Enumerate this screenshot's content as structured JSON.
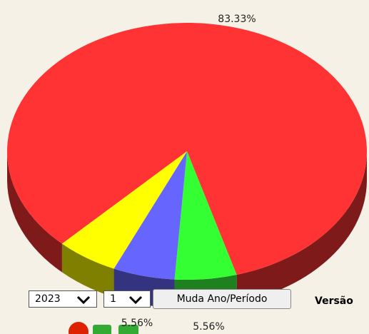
{
  "chart_data": {
    "type": "pie",
    "values": [
      83.33,
      5.56,
      5.56,
      5.56
    ],
    "value_labels": [
      "83.33%",
      "5.56%",
      "5.56%",
      null
    ],
    "colors": [
      "#ff3333",
      "#33ff33",
      "#6666ff",
      "#ffff00"
    ],
    "side_colors": [
      "#7f1a1a",
      "#1f801f",
      "#33337f",
      "#808000"
    ],
    "three_d": true
  },
  "controls": {
    "year": "2023",
    "period": "1",
    "button": "Muda Ano/Período",
    "version": "Versão"
  }
}
